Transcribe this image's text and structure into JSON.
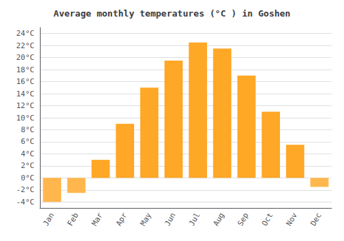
{
  "chart_data": {
    "type": "bar",
    "title": "Average monthly temperatures (°C ) in Goshen",
    "categories": [
      "Jan",
      "Feb",
      "Mar",
      "Apr",
      "May",
      "Jun",
      "Jul",
      "Aug",
      "Sep",
      "Oct",
      "Nov",
      "Dec"
    ],
    "values": [
      -4.0,
      -2.5,
      3.0,
      9.0,
      15.0,
      19.5,
      22.5,
      21.5,
      17.0,
      11.0,
      5.5,
      -1.5
    ],
    "colors": [
      "#FFB74D",
      "#FFB74D",
      "#FFA726",
      "#FFA726",
      "#FFA726",
      "#FFA726",
      "#FFA726",
      "#FFA726",
      "#FFA726",
      "#FFA726",
      "#FFA726",
      "#FFB74D"
    ],
    "ylim": [
      -5,
      25
    ],
    "yticks": [
      {
        "value": -4,
        "label": "-4°C"
      },
      {
        "value": -2,
        "label": "-2°C"
      },
      {
        "value": 0,
        "label": "0°C"
      },
      {
        "value": 2,
        "label": "2°C"
      },
      {
        "value": 4,
        "label": "4°C"
      },
      {
        "value": 6,
        "label": "6°C"
      },
      {
        "value": 8,
        "label": "8°C"
      },
      {
        "value": 10,
        "label": "10°C"
      },
      {
        "value": 12,
        "label": "12°C"
      },
      {
        "value": 14,
        "label": "14°C"
      },
      {
        "value": 16,
        "label": "16°C"
      },
      {
        "value": 18,
        "label": "18°C"
      },
      {
        "value": 20,
        "label": "20°C"
      },
      {
        "value": 22,
        "label": "22°C"
      },
      {
        "value": 24,
        "label": "24°C"
      }
    ],
    "grid": true
  }
}
